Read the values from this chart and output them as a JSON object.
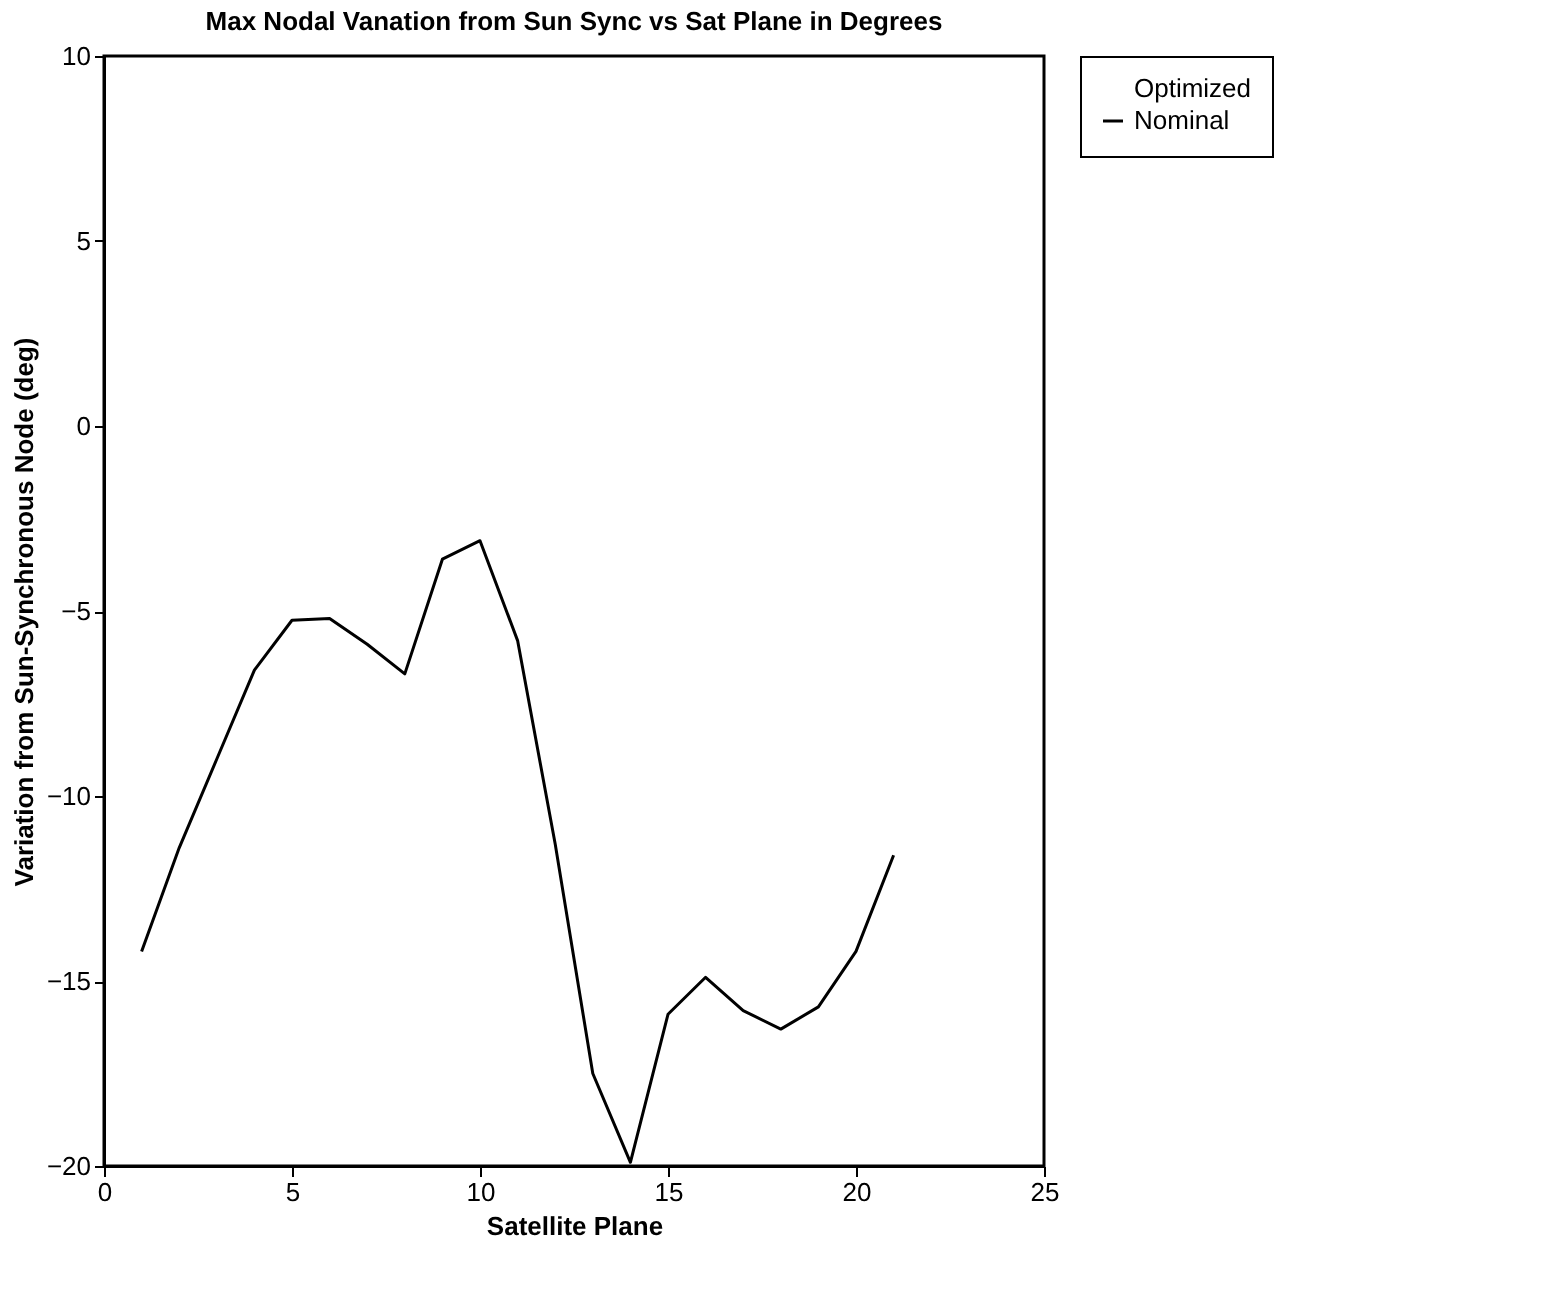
{
  "chart_data": {
    "type": "line",
    "title": "Max Nodal Vanation from Sun Sync vs Sat Plane in Degrees",
    "xlabel": "Satellite Plane",
    "ylabel": "Variation from Sun-Synchronous Node (deg)",
    "x": [
      1,
      2,
      3,
      4,
      5,
      6,
      7,
      8,
      9,
      10,
      11,
      12,
      13,
      14,
      15,
      16,
      17,
      18,
      19,
      20,
      21
    ],
    "series": [
      {
        "name": "Optimized",
        "values": [
          null,
          null,
          null,
          null,
          null,
          null,
          null,
          null,
          null,
          null,
          null,
          null,
          null,
          null,
          null,
          null,
          null,
          null,
          null,
          null,
          null
        ]
      },
      {
        "name": "Nominal",
        "color": "#000000",
        "values": [
          -14.2,
          -11.4,
          -9.0,
          -6.6,
          -5.25,
          -5.2,
          -5.9,
          -6.7,
          -3.6,
          -3.1,
          -5.8,
          -11.3,
          -17.5,
          -19.9,
          -15.9,
          -14.9,
          -15.8,
          -16.3,
          -15.7,
          -14.2,
          -11.6
        ]
      }
    ],
    "xlim": [
      0,
      25
    ],
    "xticks": [
      0,
      5,
      10,
      15,
      20,
      25
    ],
    "ylim": [
      -20,
      10
    ],
    "yticks": [
      -20,
      -15,
      -10,
      -5,
      0,
      5,
      10
    ],
    "grid": false,
    "legend": "right",
    "marker": "none",
    "line_style": "solid"
  }
}
